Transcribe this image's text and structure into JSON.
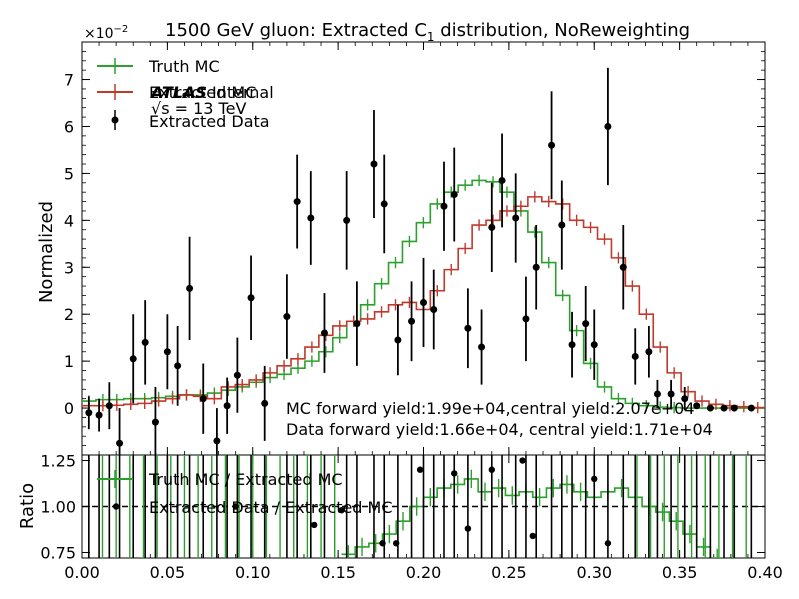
{
  "chart_data": [
    {
      "type": "line",
      "title": "1500 GeV gluon: Extracted C",
      "title_sub": "1",
      "title_rest": " distribution, NoReweighting",
      "ylabel": "Normalized",
      "exponent_label": "×10",
      "exponent_power": "−2",
      "xlim": [
        0.0,
        0.4
      ],
      "ylim": [
        -1.0,
        7.8
      ],
      "y_ticks": [
        "0",
        "1",
        "2",
        "3",
        "4",
        "5",
        "6",
        "7"
      ],
      "y_tick_values": [
        0,
        1,
        2,
        3,
        4,
        5,
        6,
        7
      ],
      "legend": [
        "Truth MC",
        "Extracted MC",
        "Extracted Data"
      ],
      "legend_position": "top-left",
      "atlas_label": "ATLAS",
      "atlas_sub": "Internal",
      "energy_label": "√s = 13 TeV",
      "annotation_1": "MC forward yield:1.99e+04,central yield:2.07e+04",
      "annotation_2": "Data forward yield:1.66e+04, central yield:1.71e+04",
      "bin_width": 0.00816,
      "series": [
        {
          "name": "Truth MC",
          "color": "#2ca02c",
          "values": [
            0.15,
            0.18,
            0.18,
            0.2,
            0.2,
            0.22,
            0.25,
            0.28,
            0.28,
            0.32,
            0.38,
            0.45,
            0.55,
            0.65,
            0.72,
            0.85,
            1.0,
            1.2,
            1.5,
            1.85,
            2.2,
            2.65,
            3.1,
            3.55,
            3.95,
            4.35,
            4.6,
            4.75,
            4.85,
            4.82,
            4.6,
            4.2,
            3.75,
            3.1,
            2.4,
            1.65,
            0.95,
            0.45,
            0.2,
            0.1,
            0.05,
            0.02,
            0.01,
            0.0,
            0.0,
            0.0,
            0.0,
            0.0,
            0.0
          ]
        },
        {
          "name": "Extracted MC",
          "color": "#c0392b",
          "values": [
            0.05,
            0.05,
            0.06,
            0.08,
            0.1,
            0.15,
            0.2,
            0.28,
            0.25,
            0.2,
            0.45,
            0.5,
            0.6,
            0.75,
            0.9,
            1.05,
            1.3,
            1.55,
            1.75,
            1.85,
            1.9,
            2.05,
            2.2,
            2.25,
            2.1,
            2.5,
            2.95,
            3.4,
            3.9,
            4.0,
            4.2,
            4.3,
            4.5,
            4.4,
            4.35,
            4.0,
            3.85,
            3.6,
            3.2,
            2.6,
            2.0,
            1.3,
            0.75,
            0.35,
            0.15,
            0.08,
            0.05,
            0.03,
            0.01
          ]
        },
        {
          "name": "Extracted Data",
          "color": "#000000",
          "x": [
            0.004,
            0.01,
            0.016,
            0.022,
            0.03,
            0.037,
            0.043,
            0.05,
            0.056,
            0.063,
            0.071,
            0.079,
            0.085,
            0.091,
            0.099,
            0.107,
            0.12,
            0.126,
            0.134,
            0.142,
            0.155,
            0.161,
            0.171,
            0.177,
            0.185,
            0.193,
            0.2,
            0.206,
            0.212,
            0.218,
            0.226,
            0.234,
            0.24,
            0.246,
            0.254,
            0.26,
            0.266,
            0.275,
            0.281,
            0.287,
            0.295,
            0.3,
            0.308,
            0.317,
            0.324,
            0.332,
            0.337,
            0.345,
            0.353,
            0.36,
            0.368,
            0.376,
            0.382,
            0.392
          ],
          "y": [
            -0.1,
            -0.15,
            0.05,
            -0.75,
            1.05,
            1.4,
            -0.3,
            1.2,
            0.9,
            2.55,
            0.2,
            -0.7,
            0.05,
            0.7,
            2.35,
            0.1,
            1.95,
            4.4,
            4.05,
            1.6,
            4.0,
            1.8,
            5.2,
            4.35,
            1.45,
            1.85,
            2.25,
            2.1,
            4.3,
            4.55,
            1.7,
            1.3,
            3.85,
            4.85,
            4.05,
            1.9,
            3.0,
            5.6,
            3.9,
            1.35,
            1.8,
            1.35,
            6.0,
            3.0,
            1.1,
            1.2,
            0.3,
            0.3,
            0.2,
            0.05,
            0.0,
            0.0,
            0.0,
            0.0
          ],
          "err": [
            0.35,
            0.35,
            0.5,
            0.75,
            0.95,
            0.9,
            0.75,
            0.8,
            0.85,
            1.1,
            0.75,
            0.7,
            0.6,
            0.8,
            0.9,
            0.8,
            0.9,
            1.0,
            1.0,
            0.85,
            1.05,
            0.9,
            1.15,
            1.05,
            0.75,
            0.85,
            0.95,
            0.85,
            0.95,
            1.0,
            0.85,
            0.8,
            0.95,
            1.0,
            0.95,
            0.9,
            0.9,
            1.15,
            0.95,
            0.7,
            0.8,
            0.75,
            1.25,
            0.9,
            0.6,
            0.55,
            0.3,
            0.3,
            0.25,
            0.05,
            0.03,
            0.03,
            0.02,
            0.02
          ]
        }
      ]
    },
    {
      "type": "line",
      "ylabel": "Ratio",
      "xlim": [
        0.0,
        0.4
      ],
      "ylim": [
        0.72,
        1.28
      ],
      "x_ticks": [
        "0.00",
        "0.05",
        "0.10",
        "0.15",
        "0.20",
        "0.25",
        "0.30",
        "0.35",
        "0.40"
      ],
      "x_tick_values": [
        0.0,
        0.05,
        0.1,
        0.15,
        0.2,
        0.25,
        0.3,
        0.35,
        0.4
      ],
      "y_ticks": [
        "0.75",
        "1.00",
        "1.25"
      ],
      "y_tick_values": [
        0.75,
        1.0,
        1.25
      ],
      "reference_line": 1.0,
      "legend": [
        "Truth MC / Extracted MC",
        "Extracted Data / Extracted MC"
      ],
      "series": [
        {
          "name": "Truth MC / Extracted MC",
          "color": "#2ca02c",
          "x": [
            0.152,
            0.16,
            0.168,
            0.176,
            0.184,
            0.192,
            0.2,
            0.208,
            0.216,
            0.224,
            0.232,
            0.24,
            0.248,
            0.256,
            0.264,
            0.272,
            0.28,
            0.288,
            0.296,
            0.304,
            0.312,
            0.32,
            0.328,
            0.336,
            0.344,
            0.352,
            0.36,
            0.368
          ],
          "y": [
            0.74,
            0.78,
            0.8,
            0.85,
            0.92,
            1.0,
            1.05,
            1.1,
            1.12,
            1.15,
            1.08,
            1.1,
            1.06,
            1.08,
            1.05,
            1.1,
            1.12,
            1.08,
            1.05,
            1.08,
            1.1,
            1.05,
            1.0,
            0.97,
            0.92,
            0.85,
            0.78,
            0.72
          ]
        },
        {
          "name": "Extracted Data / Extracted MC",
          "color": "#000000",
          "x": [
            0.02,
            0.09,
            0.136,
            0.152,
            0.176,
            0.184,
            0.198,
            0.218,
            0.226,
            0.24,
            0.258,
            0.264,
            0.3,
            0.308
          ],
          "y": [
            1.0,
            1.0,
            0.9,
            0.98,
            0.8,
            0.8,
            1.2,
            1.18,
            0.88,
            1.2,
            1.25,
            0.84,
            1.15,
            0.8
          ]
        }
      ]
    }
  ]
}
